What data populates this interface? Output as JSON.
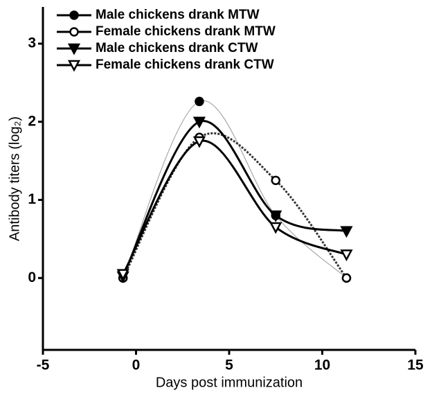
{
  "chart_data": {
    "type": "line",
    "x_label": "Days post immunization",
    "y_label": "Antibody titers (log₂)",
    "x": [
      -0.7,
      3.4,
      7.5,
      11.3
    ],
    "series": [
      {
        "name": "Male chickens drank MTW",
        "color": "#999999",
        "marker": "circle",
        "filled": true,
        "line_width": 1,
        "dash": "solid",
        "values": [
          0,
          2.26,
          0.8,
          0
        ]
      },
      {
        "name": "Female chickens drank MTW",
        "color": "#333333",
        "marker": "circle",
        "filled": false,
        "line_width": 3,
        "dash": "dotted",
        "values": [
          0,
          1.8,
          1.25,
          0
        ]
      },
      {
        "name": "Male chickens drank CTW",
        "color": "#000000",
        "marker": "triangle-down",
        "filled": true,
        "line_width": 3,
        "dash": "solid",
        "values": [
          0.02,
          2.0,
          0.8,
          0.6
        ]
      },
      {
        "name": "Female chickens drank CTW",
        "color": "#000000",
        "marker": "triangle-down",
        "filled": false,
        "line_width": 3,
        "dash": "solid",
        "values": [
          0.05,
          1.75,
          0.65,
          0.3
        ]
      }
    ],
    "xlim": [
      -5,
      15
    ],
    "xticks": [
      -5,
      0,
      5,
      10,
      15
    ],
    "ylim": [
      -0.92,
      3.47
    ],
    "yticks": [
      0,
      1,
      2,
      3
    ],
    "legend": "upper left"
  }
}
